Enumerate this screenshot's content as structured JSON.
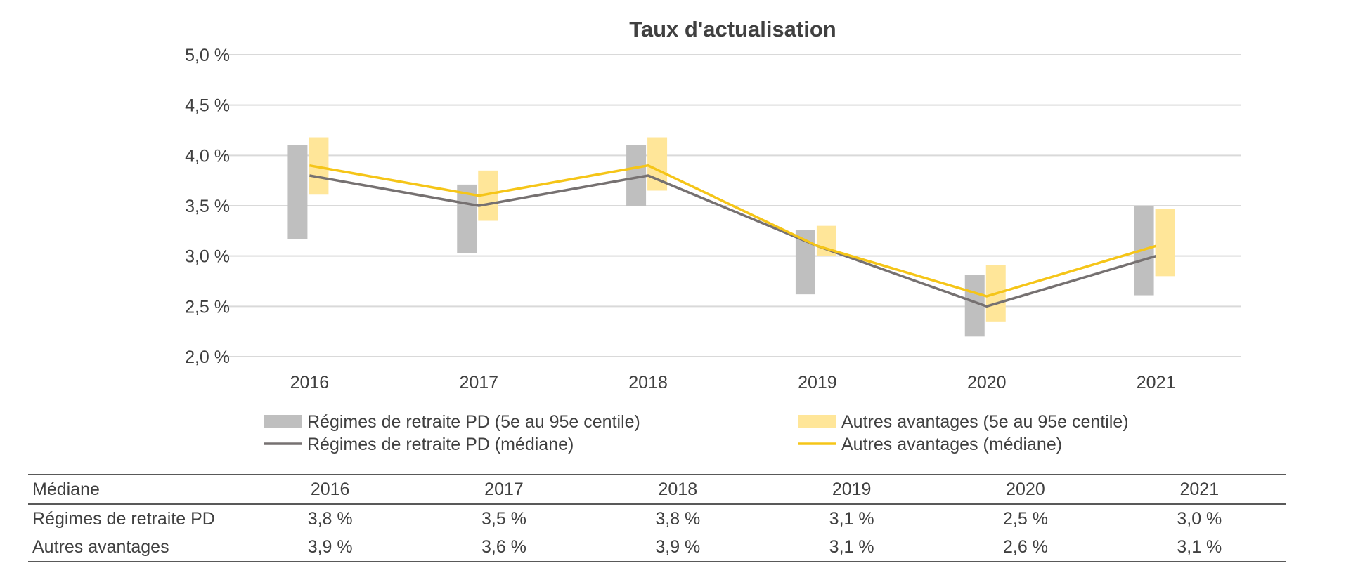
{
  "chart_data": {
    "type": "bar",
    "title": "Taux d'actualisation",
    "categories": [
      "2016",
      "2017",
      "2018",
      "2019",
      "2020",
      "2021"
    ],
    "ylim": [
      2.0,
      5.0
    ],
    "yticks": [
      2.0,
      2.5,
      3.0,
      3.5,
      4.0,
      4.5,
      5.0
    ],
    "ytick_labels": [
      "2,0 %",
      "2,5 %",
      "3,0 %",
      "3,5 %",
      "4,0 %",
      "4,5 %",
      "5,0 %"
    ],
    "grid": true,
    "legend_position": "bottom",
    "series": [
      {
        "name": "Régimes de retraite PD (5e au 95e centile)",
        "kind": "range",
        "color": "#bfbfbf",
        "low": [
          3.17,
          3.03,
          3.5,
          2.62,
          2.2,
          2.61
        ],
        "high": [
          4.1,
          3.71,
          4.1,
          3.26,
          2.81,
          3.5
        ]
      },
      {
        "name": "Autres avantages (5e au 95e centile)",
        "kind": "range",
        "color": "#ffe699",
        "low": [
          3.61,
          3.35,
          3.65,
          3.0,
          2.35,
          2.8
        ],
        "high": [
          4.18,
          3.85,
          4.18,
          3.3,
          2.91,
          3.47
        ]
      },
      {
        "name": "Régimes de retraite PD (médiane)",
        "kind": "line",
        "color": "#767171",
        "values": [
          3.8,
          3.5,
          3.8,
          3.1,
          2.5,
          3.0
        ]
      },
      {
        "name": "Autres avantages (médiane)",
        "kind": "line",
        "color": "#f5c518",
        "values": [
          3.9,
          3.6,
          3.9,
          3.1,
          2.6,
          3.1
        ]
      }
    ]
  },
  "table": {
    "header_label": "Médiane",
    "years": [
      "2016",
      "2017",
      "2018",
      "2019",
      "2020",
      "2021"
    ],
    "rows": [
      {
        "label": "Régimes de retraite PD",
        "values": [
          "3,8 %",
          "3,5 %",
          "3,8 %",
          "3,1 %",
          "2,5 %",
          "3,0 %"
        ]
      },
      {
        "label": "Autres avantages",
        "values": [
          "3,9 %",
          "3,6 %",
          "3,9 %",
          "3,1 %",
          "2,6 %",
          "3,1 %"
        ]
      }
    ]
  }
}
